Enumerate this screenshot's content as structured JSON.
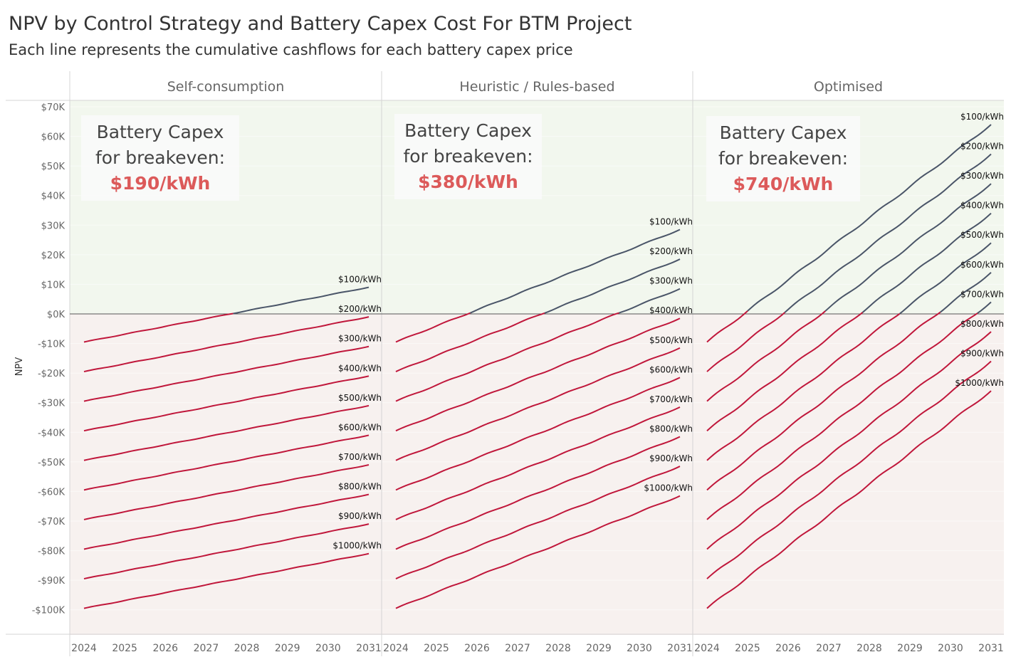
{
  "title": "NPV by Control Strategy and Battery Capex Cost For BTM Project",
  "subtitle": "Each line represents the cumulative cashflows for each battery capex price",
  "colors": {
    "positive": "#4a5568",
    "negative": "#c0173b",
    "positive_bg": "#f2f7ee",
    "negative_bg": "#f7f1ef",
    "callout_value": "#dc5a5a"
  },
  "chart_data": {
    "type": "line",
    "ylabel": "NPV",
    "ylim": [
      -110000,
      72000
    ],
    "y_ticks": [
      70000,
      60000,
      50000,
      40000,
      30000,
      20000,
      10000,
      0,
      -10000,
      -20000,
      -30000,
      -40000,
      -50000,
      -60000,
      -70000,
      -80000,
      -90000,
      -100000
    ],
    "y_tick_labels": [
      "$70K",
      "$60K",
      "$50K",
      "$40K",
      "$30K",
      "$20K",
      "$10K",
      "$0K",
      "-$10K",
      "-$20K",
      "-$30K",
      "-$40K",
      "-$50K",
      "-$60K",
      "-$70K",
      "-$80K",
      "-$90K",
      "-$100K"
    ],
    "x_ticks": [
      "2024",
      "2025",
      "2026",
      "2027",
      "2028",
      "2029",
      "2030",
      "2031"
    ],
    "series_labels": [
      "$100/kWh",
      "$200/kWh",
      "$300/kWh",
      "$400/kWh",
      "$500/kWh",
      "$600/kWh",
      "$700/kWh",
      "$800/kWh",
      "$900/kWh",
      "$1000/kWh"
    ],
    "panels": [
      {
        "name": "Self-consumption",
        "start_npv": -9500,
        "end_npv": 9000,
        "spacing": 10000,
        "callout": {
          "line1": "Battery Capex",
          "line2": "for breakeven:",
          "value": "$190/kWh"
        }
      },
      {
        "name": "Heuristic / Rules-based",
        "start_npv": -9500,
        "end_npv": 28500,
        "spacing": 10000,
        "callout": {
          "line1": "Battery Capex",
          "line2": "for breakeven:",
          "value": "$380/kWh"
        }
      },
      {
        "name": "Optimised",
        "start_npv": -9500,
        "end_npv": 64000,
        "spacing": 10000,
        "callout": {
          "line1": "Battery Capex",
          "line2": "for breakeven:",
          "value": "$740/kWh"
        }
      }
    ]
  }
}
